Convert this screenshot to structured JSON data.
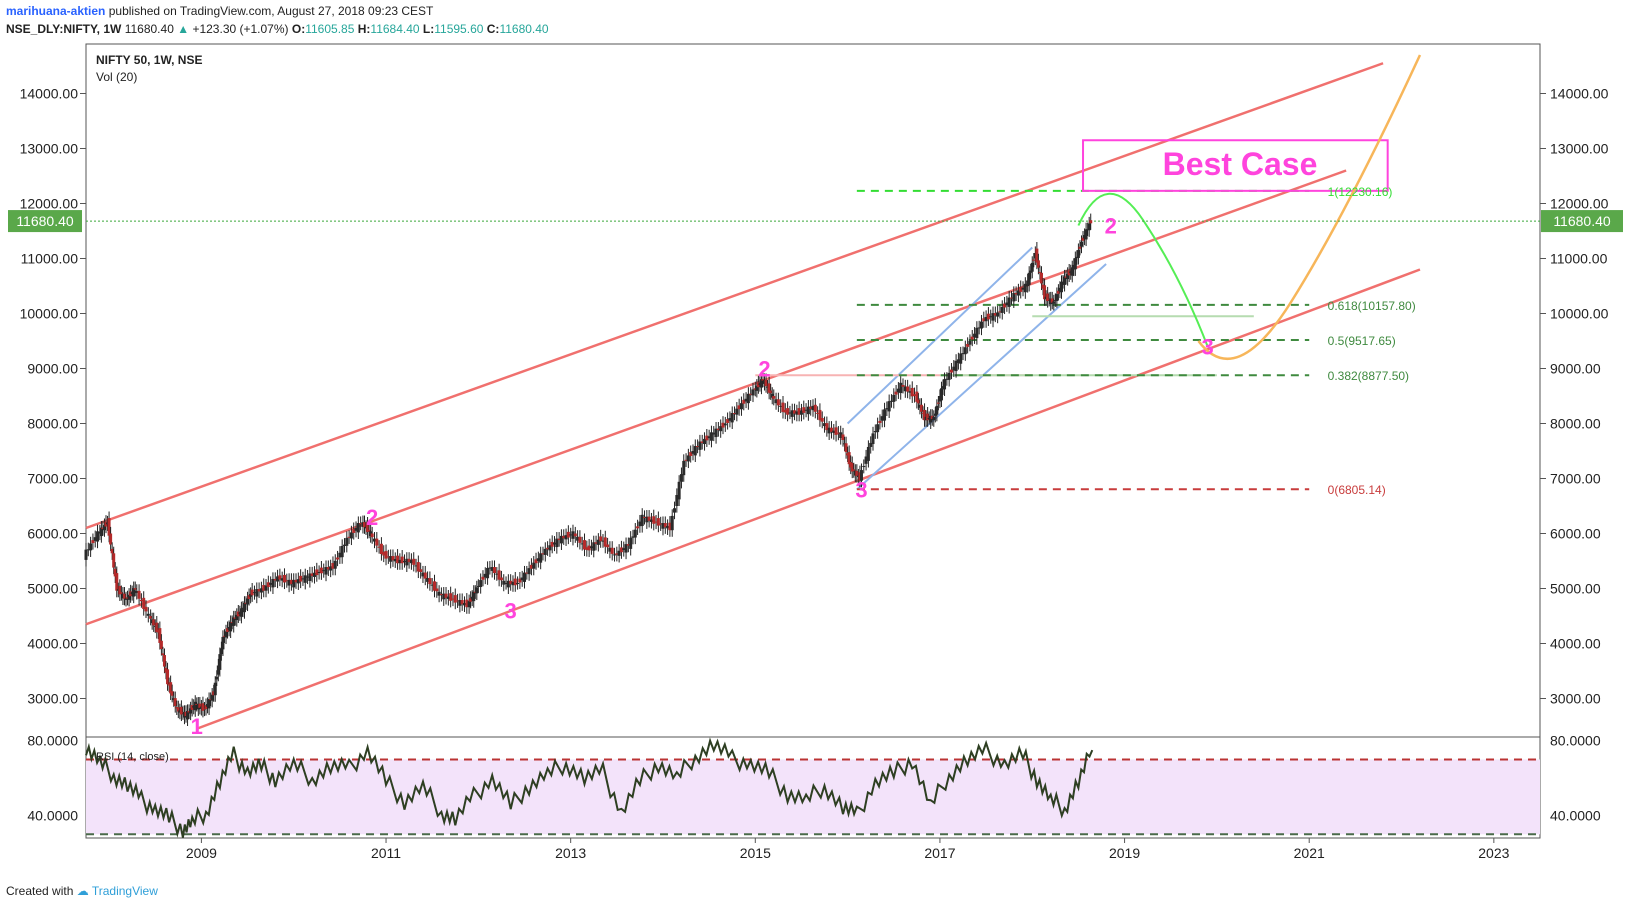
{
  "header": {
    "author": "marihuana-aktien",
    "published_text": "published on TradingView.com, August 27, 2018 09:23 CEST",
    "symbol": "NSE_DLY:NIFTY, 1W",
    "last": "11680.40",
    "change": "+123.30 (+1.07%)",
    "o_label": "O:",
    "o": "11605.85",
    "h_label": "H:",
    "h": "11684.40",
    "l_label": "L:",
    "l": "11595.60",
    "c_label": "C:",
    "c": "11680.40"
  },
  "footer": {
    "created_with": "Created with",
    "brand": "TradingView"
  },
  "colors": {
    "channel": "#f0706e",
    "blue": "#8fb4ea",
    "fib_green": "#3f8a3f",
    "fib_bright": "#33dd33",
    "fib_red": "#c83c3c",
    "magenta": "#ff44dd",
    "rsi_fill": "#f3e3fa",
    "orange": "#f7b65a",
    "green_curve": "#55ee55",
    "price_tag": "#5aa84a"
  },
  "chart_data": {
    "type": "line",
    "title": "NIFTY 50, 1W, NSE",
    "subtitle": "Vol (20)",
    "ylim": [
      2300,
      14900
    ],
    "y_ticks": [
      "3000.00",
      "4000.00",
      "5000.00",
      "6000.00",
      "7000.00",
      "8000.00",
      "9000.00",
      "10000.00",
      "11000.00",
      "12000.00",
      "13000.00",
      "14000.00"
    ],
    "y_tick_values": [
      3000,
      4000,
      5000,
      6000,
      7000,
      8000,
      9000,
      10000,
      11000,
      12000,
      13000,
      14000
    ],
    "x_ticks": [
      "2009",
      "2011",
      "2013",
      "2015",
      "2017",
      "2019",
      "2021",
      "2023"
    ],
    "x_tick_values": [
      2009,
      2011,
      2013,
      2015,
      2017,
      2019,
      2021,
      2023
    ],
    "xlim": [
      2007.75,
      2023.5
    ],
    "last_price": "11680.40",
    "last_price_value": 11680.4,
    "series": [
      {
        "x": [
          2007.75,
          2007.9,
          2008.0,
          2008.1,
          2008.2,
          2008.3,
          2008.45,
          2008.55,
          2008.65,
          2008.75,
          2008.85,
          2008.95,
          2009.05,
          2009.15,
          2009.25,
          2009.35,
          2009.45,
          2009.55,
          2009.7,
          2009.85,
          2010.0,
          2010.15,
          2010.3,
          2010.45,
          2010.6,
          2010.75,
          2010.85,
          2011.0,
          2011.15,
          2011.3,
          2011.45,
          2011.6,
          2011.75,
          2011.9,
          2012.0,
          2012.15,
          2012.3,
          2012.45,
          2012.6,
          2012.75,
          2012.9,
          2013.05,
          2013.2,
          2013.35,
          2013.5,
          2013.65,
          2013.8,
          2013.95,
          2014.1,
          2014.25,
          2014.4,
          2014.55,
          2014.7,
          2014.85,
          2015.0,
          2015.1,
          2015.2,
          2015.35,
          2015.5,
          2015.65,
          2015.8,
          2015.95,
          2016.05,
          2016.15,
          2016.3,
          2016.45,
          2016.6,
          2016.75,
          2016.85,
          2016.95,
          2017.05,
          2017.2,
          2017.35,
          2017.5,
          2017.65,
          2017.8,
          2017.95,
          2018.05,
          2018.15,
          2018.25,
          2018.35,
          2018.45,
          2018.55,
          2018.65
        ],
        "values": [
          5600,
          6000,
          6200,
          5000,
          4800,
          5000,
          4500,
          4200,
          3300,
          2800,
          2700,
          2900,
          2800,
          3100,
          4100,
          4400,
          4600,
          4900,
          5000,
          5200,
          5100,
          5200,
          5300,
          5400,
          5900,
          6200,
          6000,
          5600,
          5500,
          5500,
          5200,
          4900,
          4800,
          4700,
          5000,
          5400,
          5100,
          5100,
          5400,
          5700,
          5900,
          6000,
          5700,
          5900,
          5600,
          5800,
          6300,
          6200,
          6100,
          7300,
          7600,
          7800,
          8000,
          8300,
          8600,
          8800,
          8500,
          8200,
          8200,
          8300,
          7900,
          7800,
          7200,
          7000,
          7800,
          8300,
          8700,
          8500,
          8100,
          8100,
          8700,
          9100,
          9500,
          9900,
          10000,
          10300,
          10500,
          11100,
          10300,
          10200,
          10600,
          10800,
          11300,
          11680
        ]
      }
    ],
    "annotations": [
      {
        "text": "1",
        "x": 2008.95,
        "y": 2500
      },
      {
        "text": "2",
        "x": 2010.85,
        "y": 6300
      },
      {
        "text": "3",
        "x": 2012.35,
        "y": 4600
      },
      {
        "text": "2",
        "x": 2015.1,
        "y": 9000
      },
      {
        "text": "3",
        "x": 2016.15,
        "y": 6800
      },
      {
        "text": "2",
        "x": 2018.85,
        "y": 11600
      },
      {
        "text": "3",
        "x": 2019.9,
        "y": 9400
      }
    ],
    "fibonacci": [
      {
        "label": "1(12230.16)",
        "value": 12230.16
      },
      {
        "label": "0.618(10157.80)",
        "value": 10157.8
      },
      {
        "label": "0.5(9517.65)",
        "value": 9517.65
      },
      {
        "label": "0.382(8877.50)",
        "value": 8877.5
      },
      {
        "label": "0(6805.14)",
        "value": 6805.14
      }
    ],
    "best_case_label": "Best Case",
    "rsi": {
      "label": "RSI (14, close)",
      "ylim": [
        28,
        82
      ],
      "y_ticks": [
        "80.0000",
        "40.0000"
      ],
      "y_tick_values": [
        80,
        40
      ],
      "upper": 70,
      "lower": 30,
      "x": [
        2007.75,
        2007.9,
        2008.05,
        2008.2,
        2008.35,
        2008.5,
        2008.65,
        2008.8,
        2008.9,
        2009.05,
        2009.2,
        2009.35,
        2009.5,
        2009.65,
        2009.8,
        2010.0,
        2010.2,
        2010.4,
        2010.6,
        2010.8,
        2011.0,
        2011.2,
        2011.4,
        2011.6,
        2011.75,
        2011.95,
        2012.15,
        2012.35,
        2012.55,
        2012.75,
        2012.95,
        2013.15,
        2013.35,
        2013.55,
        2013.75,
        2013.95,
        2014.15,
        2014.35,
        2014.55,
        2014.75,
        2014.95,
        2015.15,
        2015.35,
        2015.55,
        2015.75,
        2015.95,
        2016.1,
        2016.3,
        2016.5,
        2016.7,
        2016.9,
        2017.1,
        2017.3,
        2017.5,
        2017.7,
        2017.9,
        2018.05,
        2018.2,
        2018.35,
        2018.5,
        2018.65
      ],
      "values": [
        77,
        68,
        62,
        56,
        48,
        44,
        38,
        33,
        36,
        42,
        58,
        72,
        64,
        66,
        60,
        67,
        60,
        66,
        65,
        75,
        58,
        48,
        55,
        42,
        38,
        50,
        60,
        45,
        56,
        62,
        68,
        60,
        63,
        42,
        58,
        68,
        60,
        72,
        78,
        70,
        68,
        62,
        52,
        48,
        56,
        44,
        40,
        58,
        62,
        70,
        45,
        62,
        70,
        74,
        68,
        72,
        60,
        48,
        44,
        58,
        75
      ]
    }
  }
}
